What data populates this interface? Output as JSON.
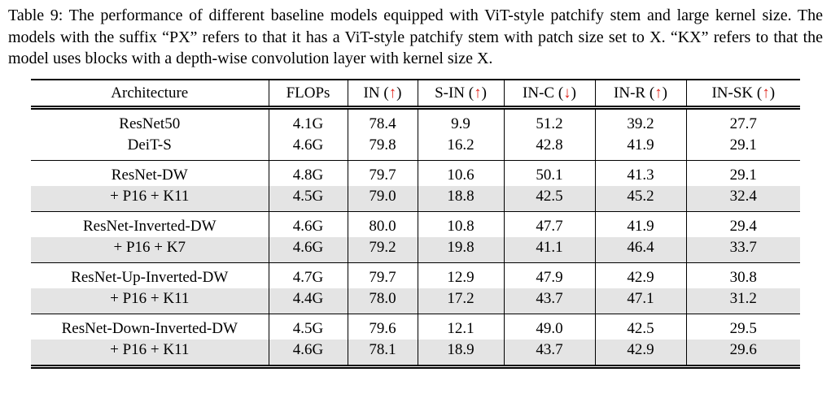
{
  "caption": {
    "label": "Table 9:",
    "body": "The performance of different baseline models equipped with ViT-style patchify stem and large kernel size. The models with the suffix “PX” refers to that it has a ViT-style patchify stem with patch size set to X. “KX” refers to that the model uses blocks with a depth-wise convolution layer with kernel size X."
  },
  "colors": {
    "arrow_red": "#e0241b",
    "row_shade": "#e4e4e4",
    "rule": "#000000"
  },
  "table": {
    "type": "table",
    "columns": [
      {
        "label": "Architecture",
        "arrow": ""
      },
      {
        "label": "FLOPs",
        "arrow": ""
      },
      {
        "label": "IN",
        "arrow": "↑"
      },
      {
        "label": "S-IN",
        "arrow": "↑"
      },
      {
        "label": "IN-C",
        "arrow": "↓"
      },
      {
        "label": "IN-R",
        "arrow": "↑"
      },
      {
        "label": "IN-SK",
        "arrow": "↑"
      }
    ],
    "groups": [
      {
        "rows": [
          {
            "shaded": false,
            "cells": [
              "ResNet50",
              "4.1G",
              "78.4",
              "9.9",
              "51.2",
              "39.2",
              "27.7"
            ]
          },
          {
            "shaded": false,
            "cells": [
              "DeiT-S",
              "4.6G",
              "79.8",
              "16.2",
              "42.8",
              "41.9",
              "29.1"
            ]
          }
        ]
      },
      {
        "rows": [
          {
            "shaded": false,
            "cells": [
              "ResNet-DW",
              "4.8G",
              "79.7",
              "10.6",
              "50.1",
              "41.3",
              "29.1"
            ]
          },
          {
            "shaded": true,
            "cells": [
              "+ P16 + K11",
              "4.5G",
              "79.0",
              "18.8",
              "42.5",
              "45.2",
              "32.4"
            ]
          }
        ]
      },
      {
        "rows": [
          {
            "shaded": false,
            "cells": [
              "ResNet-Inverted-DW",
              "4.6G",
              "80.0",
              "10.8",
              "47.7",
              "41.9",
              "29.4"
            ]
          },
          {
            "shaded": true,
            "cells": [
              "+ P16 + K7",
              "4.6G",
              "79.2",
              "19.8",
              "41.1",
              "46.4",
              "33.7"
            ]
          }
        ]
      },
      {
        "rows": [
          {
            "shaded": false,
            "cells": [
              "ResNet-Up-Inverted-DW",
              "4.7G",
              "79.7",
              "12.9",
              "47.9",
              "42.9",
              "30.8"
            ]
          },
          {
            "shaded": true,
            "cells": [
              "+ P16 + K11",
              "4.4G",
              "78.0",
              "17.2",
              "43.7",
              "47.1",
              "31.2"
            ]
          }
        ]
      },
      {
        "rows": [
          {
            "shaded": false,
            "cells": [
              "ResNet-Down-Inverted-DW",
              "4.5G",
              "79.6",
              "12.1",
              "49.0",
              "42.5",
              "29.5"
            ]
          },
          {
            "shaded": true,
            "cells": [
              "+ P16 + K11",
              "4.6G",
              "78.1",
              "18.9",
              "43.7",
              "42.9",
              "29.6"
            ]
          }
        ]
      }
    ]
  }
}
